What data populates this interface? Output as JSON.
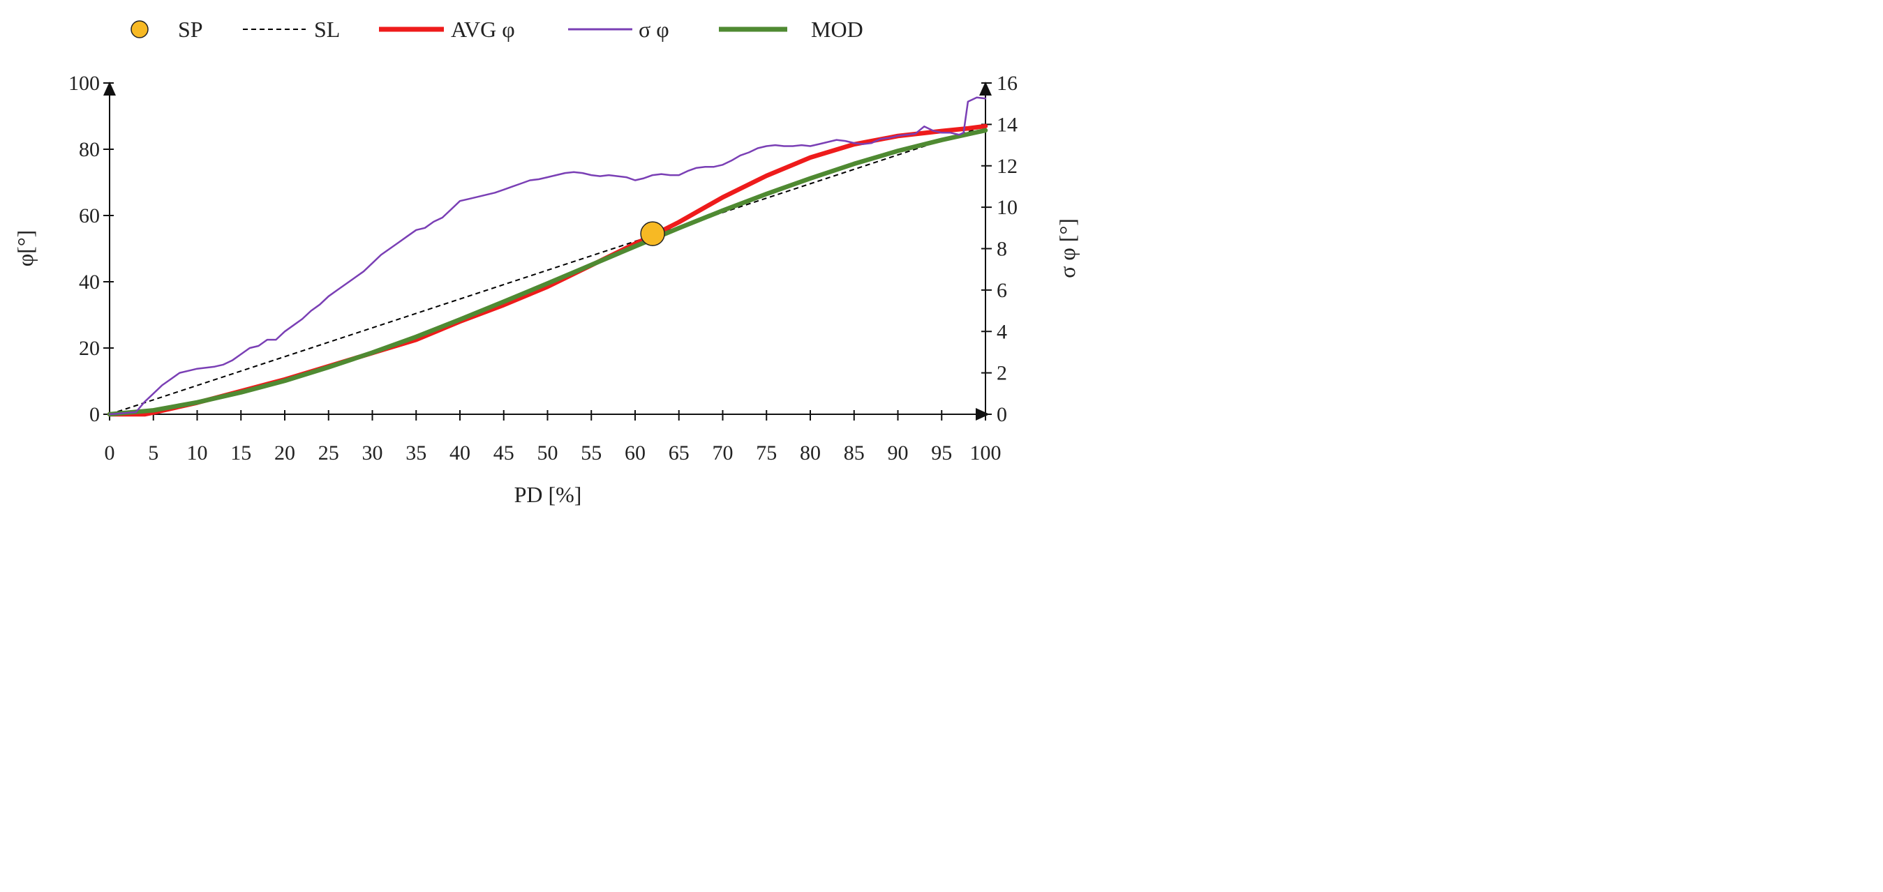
{
  "chart_data": {
    "type": "line",
    "xlabel": "PD [%]",
    "ylabel": "φ[°]",
    "y2label": "σ φ [°]",
    "xlim": [
      0,
      100
    ],
    "ylim": [
      0,
      100
    ],
    "y2lim": [
      0,
      16
    ],
    "xticks": [
      0,
      5,
      10,
      15,
      20,
      25,
      30,
      35,
      40,
      45,
      50,
      55,
      60,
      65,
      70,
      75,
      80,
      85,
      90,
      95,
      100
    ],
    "yticks": [
      0,
      20,
      40,
      60,
      80,
      100
    ],
    "y2ticks": [
      0,
      2,
      4,
      6,
      8,
      10,
      12,
      14,
      16
    ],
    "grid": false,
    "legend_position": "top",
    "legend": [
      {
        "key": "SP",
        "label": "SP",
        "style": "marker",
        "color": "#f7b924"
      },
      {
        "key": "SL",
        "label": "SL",
        "style": "dashed",
        "color": "#000000"
      },
      {
        "key": "AVG",
        "label": "AVG φ",
        "style": "thick",
        "color": "#ee1b1b"
      },
      {
        "key": "SIGMA",
        "label": "σ φ",
        "style": "thin",
        "color": "#7a3fb5"
      },
      {
        "key": "MOD",
        "label": "MOD",
        "style": "thick",
        "color": "#4f8a32"
      }
    ],
    "series": [
      {
        "key": "SL",
        "name": "SL",
        "axis": "left",
        "x": [
          0,
          100
        ],
        "y": [
          0,
          87
        ]
      },
      {
        "key": "AVG",
        "name": "AVG φ",
        "axis": "left",
        "x": [
          0,
          4,
          5,
          10,
          15,
          20,
          25,
          30,
          35,
          40,
          45,
          50,
          55,
          60,
          62,
          65,
          70,
          75,
          80,
          85,
          90,
          95,
          98,
          100
        ],
        "y": [
          0,
          0,
          0.5,
          3.5,
          7,
          10.5,
          14.5,
          18.5,
          22.5,
          28,
          33,
          38.5,
          45,
          51.5,
          54,
          58,
          65.5,
          72,
          77.5,
          81.5,
          84,
          85.5,
          86.3,
          87
        ]
      },
      {
        "key": "SIGMA",
        "name": "σ φ",
        "axis": "right",
        "x": [
          0,
          3,
          4,
          5,
          6,
          7,
          8,
          9,
          10,
          11,
          12,
          13,
          14,
          15,
          16,
          17,
          18,
          19,
          20,
          21,
          22,
          23,
          24,
          25,
          26,
          27,
          28,
          29,
          30,
          31,
          32,
          33,
          34,
          35,
          36,
          37,
          38,
          39,
          40,
          41,
          42,
          43,
          44,
          45,
          46,
          47,
          48,
          49,
          50,
          51,
          52,
          53,
          54,
          55,
          56,
          57,
          58,
          59,
          60,
          61,
          62,
          63,
          64,
          65,
          66,
          67,
          68,
          69,
          70,
          71,
          72,
          73,
          74,
          75,
          76,
          77,
          78,
          79,
          80,
          81,
          82,
          83,
          84,
          85,
          86,
          87,
          88,
          89,
          90,
          91,
          92,
          93,
          94,
          95,
          96,
          97,
          97.5,
          98,
          99,
          100
        ],
        "y": [
          0,
          0.1,
          0.6,
          1.0,
          1.4,
          1.7,
          2.0,
          2.1,
          2.2,
          2.25,
          2.3,
          2.4,
          2.6,
          2.9,
          3.2,
          3.3,
          3.6,
          3.6,
          4.0,
          4.3,
          4.6,
          5.0,
          5.3,
          5.7,
          6.0,
          6.3,
          6.6,
          6.9,
          7.3,
          7.7,
          8.0,
          8.3,
          8.6,
          8.9,
          9.0,
          9.3,
          9.5,
          9.9,
          10.3,
          10.4,
          10.5,
          10.6,
          10.7,
          10.85,
          11.0,
          11.15,
          11.3,
          11.35,
          11.45,
          11.55,
          11.65,
          11.7,
          11.65,
          11.55,
          11.5,
          11.55,
          11.5,
          11.45,
          11.3,
          11.4,
          11.55,
          11.6,
          11.55,
          11.55,
          11.75,
          11.9,
          11.95,
          11.95,
          12.05,
          12.25,
          12.5,
          12.65,
          12.85,
          12.95,
          13.0,
          12.95,
          12.95,
          13.0,
          12.95,
          13.05,
          13.15,
          13.25,
          13.2,
          13.1,
          13.05,
          13.1,
          13.3,
          13.35,
          13.45,
          13.5,
          13.55,
          13.9,
          13.7,
          13.6,
          13.6,
          13.5,
          13.6,
          15.1,
          15.3,
          15.25
        ]
      },
      {
        "key": "MOD",
        "name": "MOD",
        "axis": "left",
        "x": [
          0,
          5,
          10,
          15,
          20,
          25,
          30,
          35,
          40,
          45,
          50,
          55,
          60,
          65,
          70,
          75,
          80,
          85,
          90,
          95,
          100
        ],
        "y": [
          0,
          1.2,
          3.6,
          6.6,
          10.1,
          14.2,
          18.6,
          23.4,
          28.6,
          34.0,
          39.5,
          45.1,
          50.7,
          56.2,
          61.5,
          66.5,
          71.2,
          75.6,
          79.5,
          82.8,
          85.7
        ]
      }
    ],
    "points": [
      {
        "key": "SP",
        "name": "SP",
        "axis": "left",
        "x": 62,
        "y": 54.5
      }
    ]
  }
}
